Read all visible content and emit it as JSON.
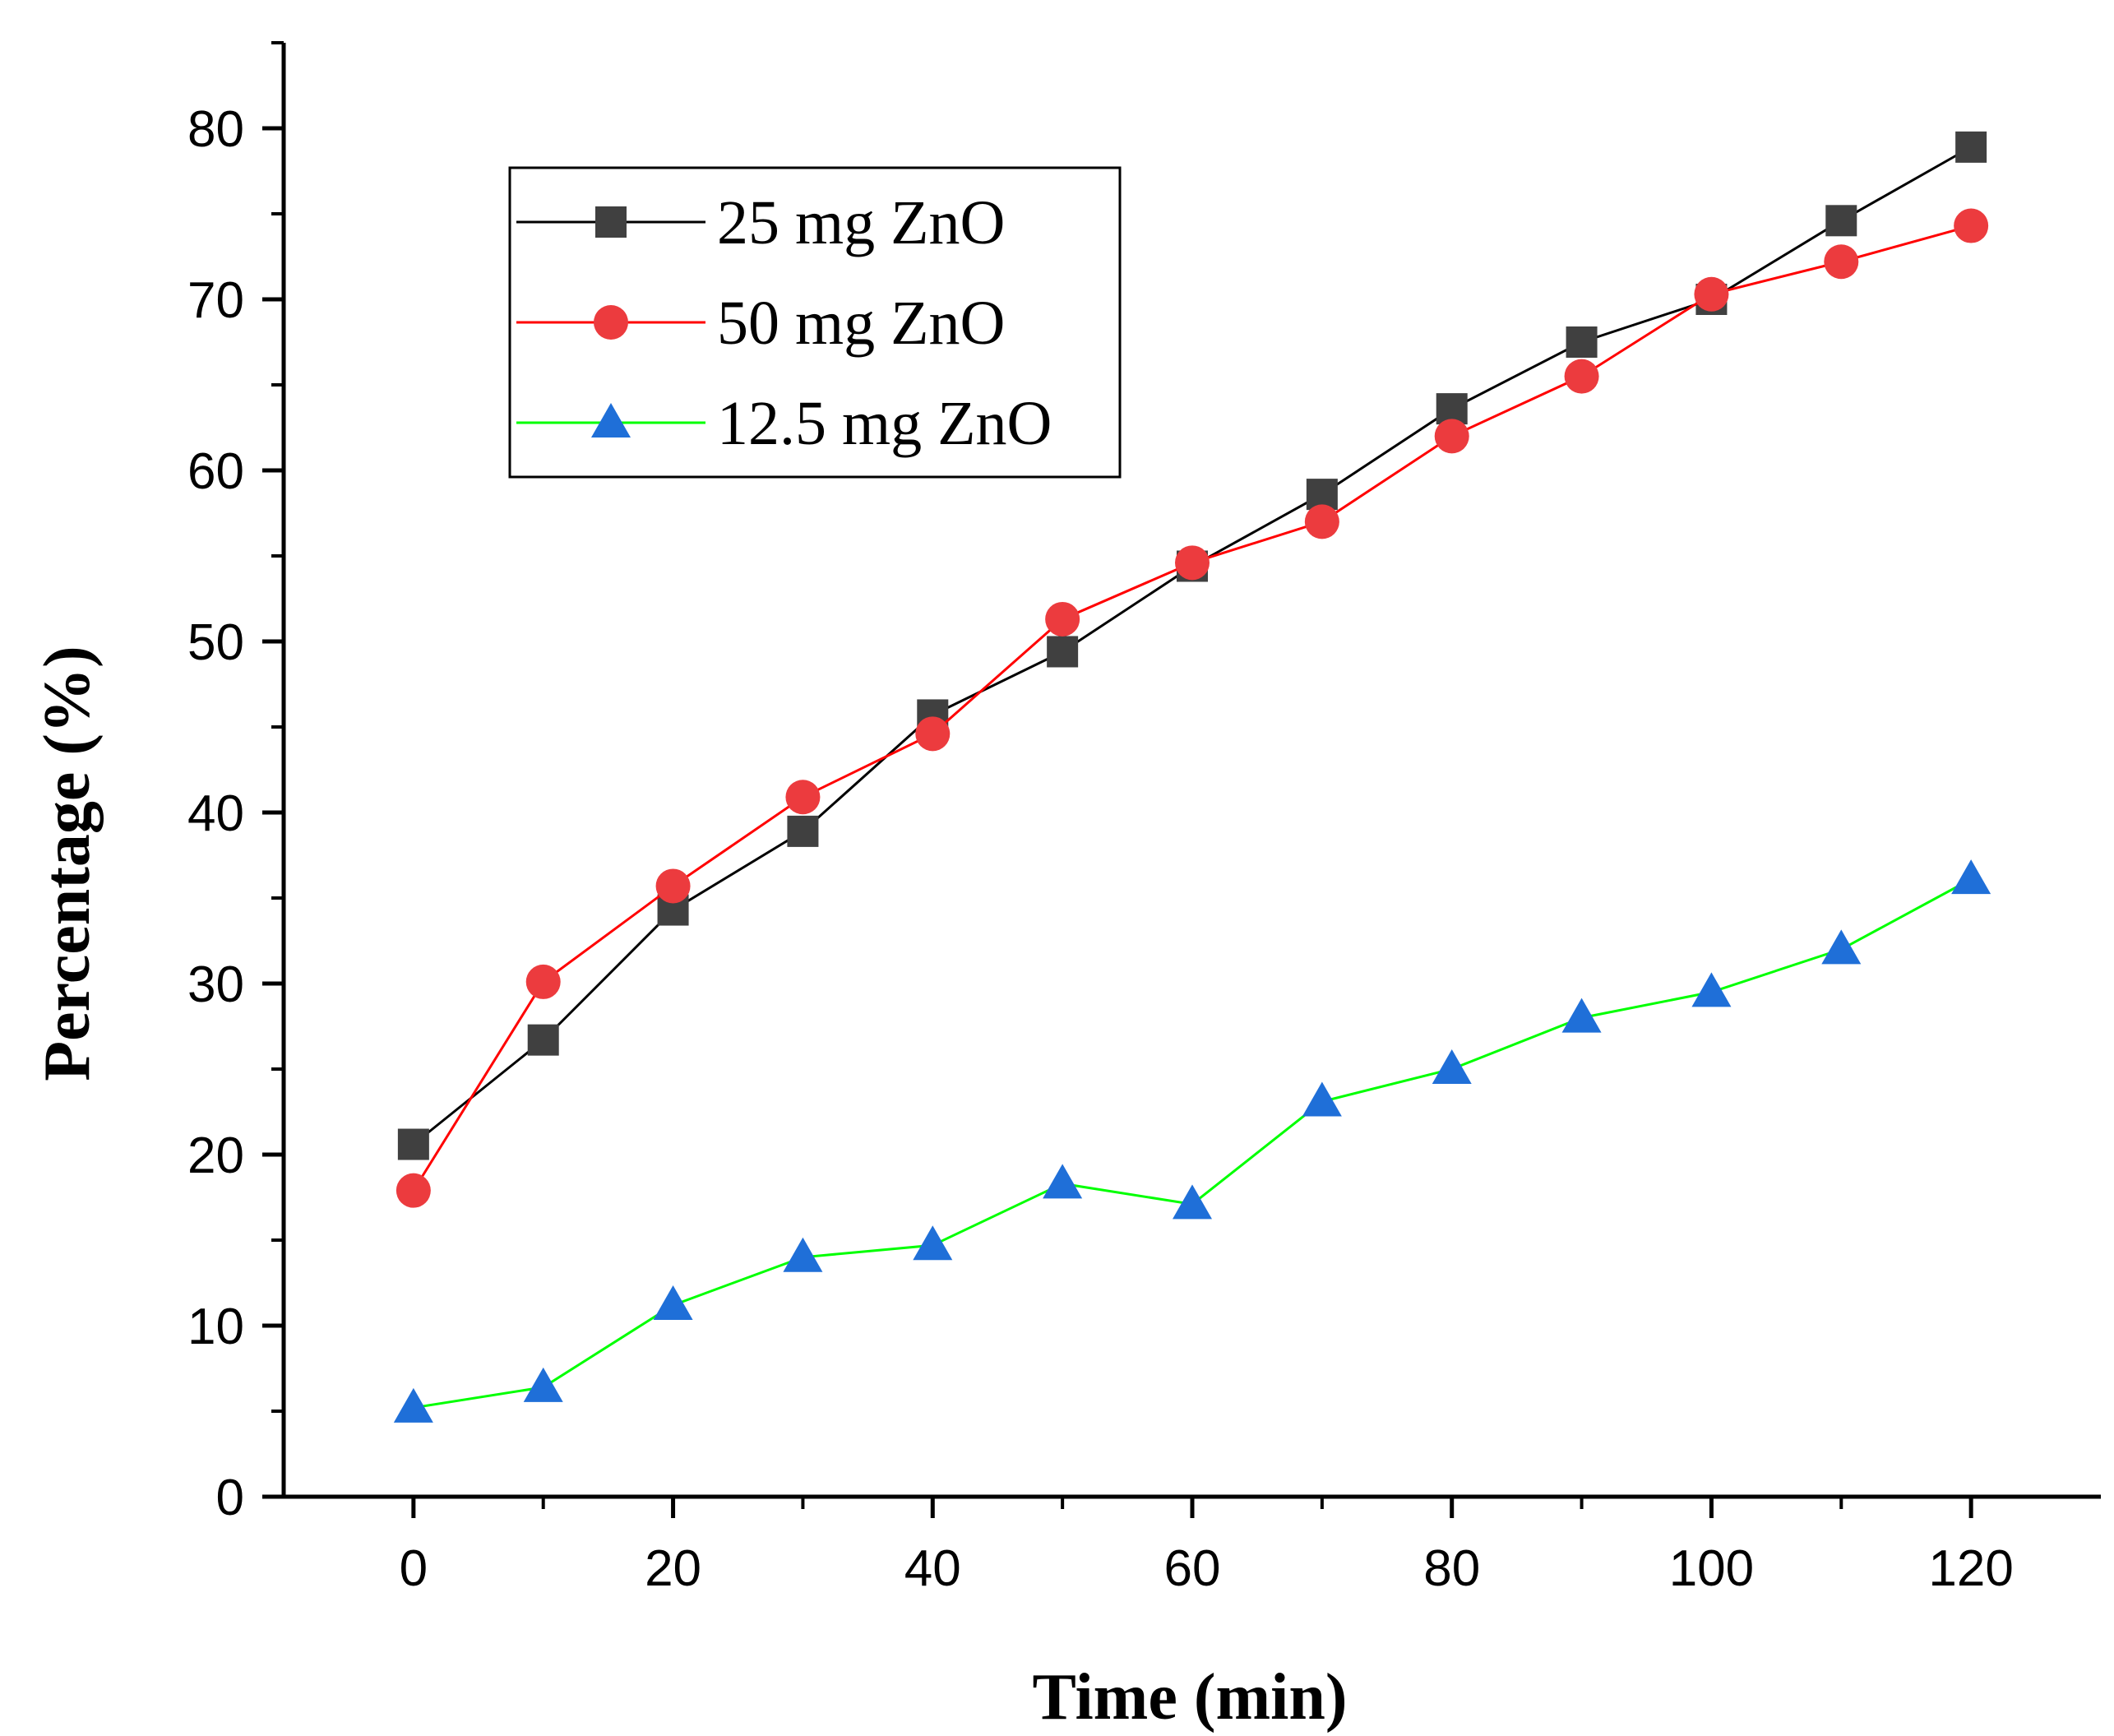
{
  "chart_data": {
    "type": "line",
    "title": "",
    "xlabel": "Time (min)",
    "ylabel": "Percentage (%)",
    "xlim": [
      -10,
      130
    ],
    "ylim": [
      0,
      85
    ],
    "xticks": [
      0,
      20,
      40,
      60,
      80,
      100,
      120
    ],
    "xtick_labels": [
      "0",
      "20",
      "40",
      "60",
      "80",
      "100",
      "120"
    ],
    "xminor": [
      10,
      30,
      50,
      70,
      90,
      110
    ],
    "yticks": [
      0,
      10,
      20,
      30,
      40,
      50,
      60,
      70,
      80
    ],
    "ytick_labels": [
      "0",
      "10",
      "20",
      "30",
      "40",
      "50",
      "60",
      "70",
      "80"
    ],
    "yminor": [
      5,
      15,
      25,
      35,
      45,
      55,
      65,
      75,
      85
    ],
    "grid": false,
    "legend_position": "top-left",
    "x": [
      0,
      10,
      20,
      30,
      40,
      50,
      60,
      70,
      80,
      90,
      100,
      110,
      120
    ],
    "series": [
      {
        "name": "25 mg ZnO",
        "marker": "square",
        "line_color": "#000000",
        "marker_color": "#404040",
        "values": [
          20.6,
          26.7,
          34.3,
          38.9,
          45.7,
          49.4,
          54.4,
          58.6,
          63.6,
          67.5,
          70.0,
          74.6,
          78.9
        ]
      },
      {
        "name": "50 mg ZnO",
        "marker": "circle",
        "line_color": "#ff0000",
        "marker_color": "#ec3b3e",
        "values": [
          17.9,
          30.1,
          35.7,
          40.9,
          44.6,
          51.3,
          54.6,
          57.0,
          62.0,
          65.5,
          70.3,
          72.2,
          74.3
        ]
      },
      {
        "name": "12.5 mg ZnO",
        "marker": "triangle",
        "line_color": "#00ff00",
        "marker_color": "#1f6fd8",
        "values": [
          5.2,
          6.4,
          11.2,
          14.0,
          14.7,
          18.3,
          17.1,
          23.1,
          25.0,
          28.0,
          29.5,
          32.0,
          36.1
        ]
      }
    ]
  }
}
